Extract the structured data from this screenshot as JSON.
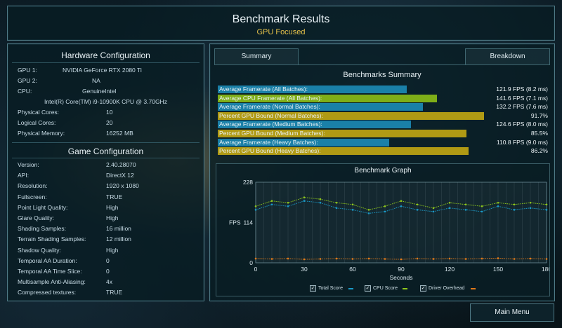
{
  "header": {
    "title": "Benchmark Results",
    "subtitle": "GPU Focused"
  },
  "hardware": {
    "title": "Hardware Configuration",
    "gpu1": {
      "label": "GPU 1:",
      "value": "NVIDIA GeForce RTX 2080 Ti"
    },
    "gpu2": {
      "label": "GPU 2:",
      "value": "NA"
    },
    "cpu": {
      "label": "CPU:",
      "value": "GenuineIntel",
      "model": "Intel(R) Core(TM) i9-10900K CPU @ 3.70GHz"
    },
    "physical_cores": {
      "label": "Physical Cores:",
      "value": "10"
    },
    "logical_cores": {
      "label": "Logical Cores:",
      "value": "20"
    },
    "physical_memory": {
      "label": "Physical Memory:",
      "value": "16252  MB"
    }
  },
  "game": {
    "title": "Game Configuration",
    "rows": [
      {
        "label": "Version:",
        "value": "2.40.28070"
      },
      {
        "label": "API:",
        "value": "DirectX 12"
      },
      {
        "label": "Resolution:",
        "value": "1920 x 1080"
      },
      {
        "label": "Fullscreen:",
        "value": "TRUE"
      },
      {
        "label": "Point Light Quality:",
        "value": "High"
      },
      {
        "label": "Glare Quality:",
        "value": "High"
      },
      {
        "label": "Shading Samples:",
        "value": "16 million"
      },
      {
        "label": "Terrain Shading Samples:",
        "value": "12 million"
      },
      {
        "label": "Shadow Quality:",
        "value": "High"
      },
      {
        "label": "Temporal AA Duration:",
        "value": "0"
      },
      {
        "label": "Temporal AA Time Slice:",
        "value": "0"
      },
      {
        "label": "Multisample Anti-Aliasing:",
        "value": "4x"
      },
      {
        "label": "Compressed textures:",
        "value": "TRUE"
      }
    ]
  },
  "tabs": {
    "summary": "Summary",
    "breakdown": "Breakdown"
  },
  "summary": {
    "title": "Benchmarks Summary",
    "colors": {
      "framerate": "#1a80a8",
      "cpu": "#7fae18",
      "gpu_bound": "#b09a14"
    },
    "rows": [
      {
        "label": "Average Framerate (All Batches):",
        "value": "121.9 FPS (8.2 ms)",
        "fill": 0.65,
        "kind": "framerate"
      },
      {
        "label": "Average CPU Framerate (All Batches):",
        "value": "141.6 FPS (7.1 ms)",
        "fill": 0.755,
        "kind": "cpu"
      },
      {
        "label": "Average Framerate (Normal Batches):",
        "value": "132.2 FPS (7.6 ms)",
        "fill": 0.705,
        "kind": "framerate"
      },
      {
        "label": "Percent GPU Bound (Normal Batches):",
        "value": "91.7%",
        "fill": 0.917,
        "kind": "gpu_bound"
      },
      {
        "label": "Average Framerate (Medium Batches):",
        "value": "124.6 FPS (8.0 ms)",
        "fill": 0.665,
        "kind": "framerate"
      },
      {
        "label": "Percent GPU Bound (Medium Batches):",
        "value": "85.5%",
        "fill": 0.855,
        "kind": "gpu_bound"
      },
      {
        "label": "Average Framerate (Heavy Batches):",
        "value": "110.8 FPS (9.0 ms)",
        "fill": 0.59,
        "kind": "framerate"
      },
      {
        "label": "Percent GPU Bound (Heavy Batches):",
        "value": "86.2%",
        "fill": 0.862,
        "kind": "gpu_bound"
      }
    ]
  },
  "graph": {
    "title": "Benchmark Graph",
    "xlabel": "Seconds",
    "ylabel": "FPS",
    "legend": {
      "total": "Total Score",
      "cpu": "CPU Score",
      "driver": "Driver Overhead"
    }
  },
  "chart_data": {
    "type": "scatter",
    "title": "Benchmark Graph",
    "xlabel": "Seconds",
    "ylabel": "FPS",
    "xlim": [
      0,
      180
    ],
    "ylim": [
      0,
      228
    ],
    "x_ticks": [
      0,
      30,
      60,
      90,
      120,
      150,
      180
    ],
    "y_ticks": [
      0,
      114,
      228
    ],
    "legend_position": "bottom",
    "series": [
      {
        "name": "Total Score",
        "color": "#1a9ac8",
        "x": [
          0,
          10,
          20,
          30,
          40,
          50,
          60,
          70,
          80,
          90,
          100,
          110,
          120,
          130,
          140,
          150,
          160,
          170,
          180
        ],
        "y": [
          150,
          165,
          160,
          175,
          170,
          155,
          150,
          140,
          145,
          160,
          150,
          145,
          155,
          150,
          145,
          160,
          150,
          155,
          150
        ]
      },
      {
        "name": "CPU Score",
        "color": "#8fc81c",
        "x": [
          0,
          10,
          20,
          30,
          40,
          50,
          60,
          70,
          80,
          90,
          100,
          110,
          120,
          130,
          140,
          150,
          160,
          170,
          180
        ],
        "y": [
          160,
          175,
          170,
          185,
          180,
          170,
          165,
          150,
          160,
          175,
          165,
          155,
          170,
          165,
          160,
          170,
          165,
          170,
          165
        ]
      },
      {
        "name": "Driver Overhead",
        "color": "#e07a1a",
        "x": [
          0,
          10,
          20,
          30,
          40,
          50,
          60,
          70,
          80,
          90,
          100,
          110,
          120,
          130,
          140,
          150,
          160,
          170,
          180
        ],
        "y": [
          12,
          11,
          12,
          10,
          11,
          12,
          11,
          12,
          11,
          10,
          12,
          11,
          12,
          11,
          12,
          13,
          11,
          12,
          11
        ]
      }
    ]
  },
  "main_menu": {
    "label": "Main Menu"
  }
}
